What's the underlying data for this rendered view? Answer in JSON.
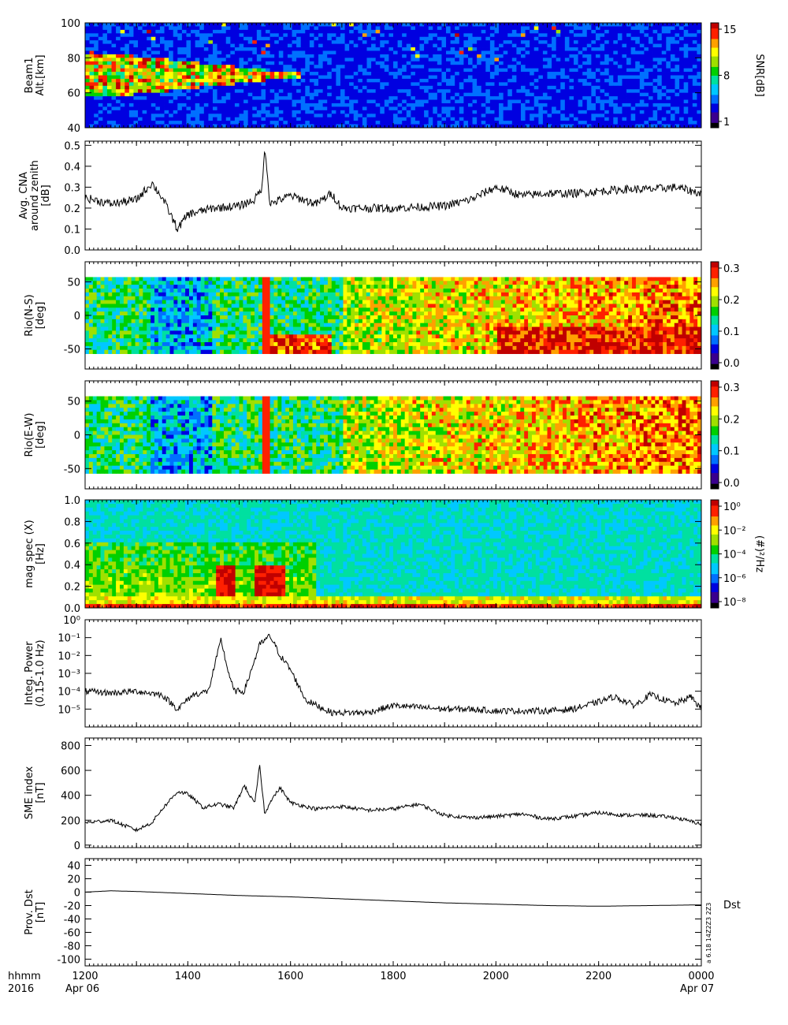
{
  "colors": {
    "background": "#ffffff",
    "axis": "#000000",
    "trace": "#000000",
    "colormap": [
      "#000000",
      "#3a008f",
      "#0000e0",
      "#0070ff",
      "#00c8ff",
      "#00e0a0",
      "#00d000",
      "#a0e000",
      "#ffff00",
      "#ffa000",
      "#ff2000",
      "#c00000"
    ]
  },
  "time_axis": {
    "tick_labels": [
      "1200",
      "1400",
      "1600",
      "1800",
      "2000",
      "2200",
      "0000"
    ],
    "hours": [
      12,
      14,
      16,
      18,
      20,
      22,
      24
    ],
    "start_date": "Apr 06",
    "end_date": "Apr 07",
    "row_label_1": "hhmm",
    "row_label_2": "2016"
  },
  "footer": {
    "vertical_stamp": "a 6.18 14Z2Z3 2Z3"
  },
  "chart_data": [
    {
      "id": "beam1",
      "type": "heatmap",
      "ylabel": [
        "Beam1",
        "Alt.[km]"
      ],
      "ylim": [
        40,
        100
      ],
      "yticks": [
        40,
        60,
        80,
        100
      ],
      "colorbar": {
        "label": "SNR[dB]",
        "ticks": [
          "1",
          "8",
          "15"
        ],
        "range": [
          1,
          15
        ]
      }
    },
    {
      "id": "cna",
      "type": "line",
      "ylabel": [
        "Avg. CNA",
        "around zenith",
        "[dB]"
      ],
      "ylim": [
        0.0,
        0.52
      ],
      "yticks": [
        "0.0",
        "0.1",
        "0.2",
        "0.3",
        "0.4",
        "0.5"
      ],
      "x": [
        12.0,
        12.5,
        13.0,
        13.3,
        13.5,
        13.8,
        14.0,
        14.5,
        15.0,
        15.3,
        15.45,
        15.5,
        15.6,
        16.0,
        16.5,
        16.8,
        17.0,
        17.5,
        18.0,
        19.0,
        19.5,
        20.0,
        20.5,
        21.0,
        21.5,
        22.0,
        22.5,
        23.0,
        23.5,
        24.0
      ],
      "y": [
        0.25,
        0.22,
        0.24,
        0.32,
        0.25,
        0.1,
        0.17,
        0.2,
        0.21,
        0.24,
        0.3,
        0.5,
        0.22,
        0.26,
        0.22,
        0.27,
        0.2,
        0.2,
        0.2,
        0.21,
        0.24,
        0.3,
        0.26,
        0.27,
        0.27,
        0.28,
        0.29,
        0.29,
        0.3,
        0.27
      ]
    },
    {
      "id": "rio_ns",
      "type": "heatmap",
      "ylabel": [
        "Rio(N-S)",
        "[deg]"
      ],
      "ylim": [
        -80,
        80
      ],
      "yticks": [
        "-50",
        "0",
        "50"
      ],
      "colorbar": {
        "ticks": [
          "0.0",
          "0.1",
          "0.2",
          "0.3"
        ],
        "range": [
          0.0,
          0.37
        ]
      }
    },
    {
      "id": "rio_ew",
      "type": "heatmap",
      "ylabel": [
        "Rio(E-W)",
        "[deg]"
      ],
      "ylim": [
        -80,
        80
      ],
      "yticks": [
        "-50",
        "0",
        "50"
      ],
      "colorbar": {
        "ticks": [
          "0.0",
          "0.1",
          "0.2",
          "0.3"
        ],
        "range": [
          0.0,
          0.37
        ]
      }
    },
    {
      "id": "magspec",
      "type": "heatmap",
      "ylabel": [
        "mag spec (X)",
        "[Hz]"
      ],
      "ylim": [
        0.0,
        1.0
      ],
      "yticks": [
        "0.0",
        "0.2",
        "0.4",
        "0.6",
        "0.8",
        "1.0"
      ],
      "colorbar": {
        "label": "(#)²/Hz",
        "ticks": [
          "10⁰",
          "10⁻²",
          "10⁻⁴",
          "10⁻⁶",
          "10⁻⁸"
        ],
        "range_log10": [
          -9,
          0
        ]
      }
    },
    {
      "id": "integ_power",
      "type": "line",
      "ylabel": [
        "Integ. Power",
        "(0.15-1.0 Hz)"
      ],
      "ylim_log10": [
        -6,
        0
      ],
      "yticks": [
        "10⁻⁵",
        "10⁻⁴",
        "10⁻³",
        "10⁻²",
        "10⁻¹",
        "10⁰"
      ],
      "x": [
        12.0,
        12.5,
        13.0,
        13.5,
        13.8,
        14.1,
        14.4,
        14.65,
        14.75,
        14.9,
        15.1,
        15.4,
        15.6,
        15.8,
        16.0,
        16.3,
        16.8,
        17.5,
        18.0,
        18.5,
        19.0,
        19.5,
        20.0,
        20.5,
        21.0,
        21.5,
        22.0,
        22.3,
        22.7,
        23.0,
        23.5,
        23.8,
        24.0
      ],
      "y_log10": [
        -4.0,
        -4.1,
        -4.0,
        -4.2,
        -5.0,
        -4.2,
        -4.0,
        -1.1,
        -2.5,
        -4.0,
        -4.0,
        -1.4,
        -0.9,
        -2.0,
        -2.8,
        -4.5,
        -5.2,
        -5.2,
        -4.8,
        -4.9,
        -5.0,
        -5.0,
        -5.1,
        -5.1,
        -5.1,
        -5.0,
        -4.6,
        -4.3,
        -4.8,
        -4.2,
        -4.7,
        -4.3,
        -5.0
      ]
    },
    {
      "id": "sme",
      "type": "line",
      "ylabel": [
        "SME index",
        "[nT]"
      ],
      "ylim": [
        -20,
        860
      ],
      "yticks": [
        "0",
        "200",
        "400",
        "600",
        "800"
      ],
      "x": [
        12.0,
        12.5,
        13.0,
        13.3,
        13.5,
        13.8,
        14.0,
        14.3,
        14.6,
        14.9,
        15.1,
        15.3,
        15.4,
        15.5,
        15.6,
        15.8,
        16.0,
        16.5,
        17.0,
        17.5,
        18.0,
        18.5,
        19.0,
        19.5,
        20.0,
        20.5,
        21.0,
        21.5,
        22.0,
        22.5,
        23.0,
        23.5,
        24.0
      ],
      "y": [
        180,
        200,
        120,
        180,
        290,
        430,
        410,
        300,
        330,
        300,
        480,
        330,
        640,
        240,
        350,
        460,
        340,
        290,
        310,
        280,
        290,
        330,
        240,
        220,
        230,
        250,
        210,
        230,
        260,
        240,
        240,
        220,
        170
      ]
    },
    {
      "id": "dst",
      "type": "line",
      "ylabel": [
        "Prov. Dst",
        "[nT]"
      ],
      "ylim": [
        -110,
        50
      ],
      "yticks": [
        "-100",
        "-80",
        "-60",
        "-40",
        "-20",
        "0",
        "20",
        "40"
      ],
      "x": [
        12.0,
        12.5,
        13.0,
        14.0,
        15.0,
        16.0,
        17.0,
        18.0,
        19.0,
        20.0,
        21.0,
        22.0,
        23.0,
        24.0
      ],
      "y": [
        0,
        2,
        1,
        -2,
        -5,
        -7,
        -10,
        -13,
        -16,
        -18,
        -20,
        -21,
        -20,
        -19
      ],
      "annotation": "Dst"
    }
  ]
}
